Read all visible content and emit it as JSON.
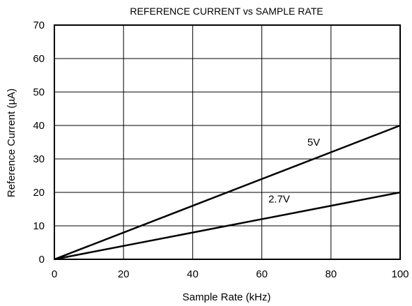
{
  "chart_data": {
    "type": "line",
    "title": "REFERENCE CURRENT vs SAMPLE RATE",
    "xlabel": "Sample Rate (kHz)",
    "ylabel": "Reference Current (µA)",
    "xlim": [
      0,
      100
    ],
    "ylim": [
      0,
      70
    ],
    "xticks": [
      "0",
      "20",
      "40",
      "60",
      "80",
      "100"
    ],
    "yticks": [
      "0",
      "10",
      "20",
      "30",
      "40",
      "50",
      "60",
      "70"
    ],
    "grid": true,
    "legend": "none",
    "series": [
      {
        "name": "5V",
        "x": [
          0,
          100
        ],
        "y": [
          0,
          40
        ],
        "label_at": [
          75,
          34
        ]
      },
      {
        "name": "2.7V",
        "x": [
          0,
          100
        ],
        "y": [
          0,
          20
        ],
        "label_at": [
          65,
          17
        ]
      }
    ]
  }
}
